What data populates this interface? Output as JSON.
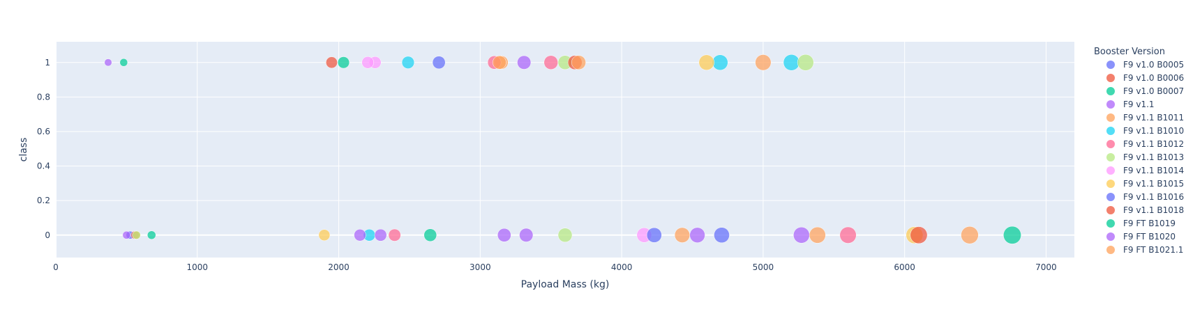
{
  "chart_data": {
    "type": "scatter",
    "title": "",
    "xlabel": "Payload Mass (kg)",
    "ylabel": "class",
    "xlim": [
      0,
      7200
    ],
    "ylim": [
      -0.13,
      1.12
    ],
    "x_ticks": [
      0,
      1000,
      2000,
      3000,
      4000,
      5000,
      6000,
      7000
    ],
    "x_tick_labels": [
      "0",
      "1000",
      "2000",
      "3000",
      "4000",
      "5000",
      "6000",
      "7000"
    ],
    "y_ticks": [
      0,
      0.2,
      0.4,
      0.6,
      0.8,
      1
    ],
    "y_tick_labels": [
      "0",
      "0.2",
      "0.4",
      "0.6",
      "0.8",
      "1"
    ],
    "grid": true,
    "legend_title": "Booster Version",
    "legend_position": "right",
    "marker_size_encodes": "Payload Mass (kg)",
    "series": [
      {
        "name": "F9 v1.0  B0005",
        "color": "#636efa",
        "points": [
          [
            525,
            0
          ]
        ]
      },
      {
        "name": "F9 v1.0  B0006",
        "color": "#ef553b",
        "points": [
          [
            1950,
            1
          ],
          [
            560,
            0
          ]
        ]
      },
      {
        "name": "F9 v1.0  B0007",
        "color": "#00cc96",
        "points": [
          [
            480,
            1
          ],
          [
            677,
            0
          ]
        ]
      },
      {
        "name": "F9 v1.1",
        "color": "#ab63fa",
        "points": [
          [
            370,
            1
          ],
          [
            500,
            0
          ],
          [
            3325,
            0
          ]
        ]
      },
      {
        "name": "F9 v1.1 B1011",
        "color": "#ffa15a",
        "points": [
          [
            3150,
            1
          ],
          [
            570,
            0
          ]
        ]
      },
      {
        "name": "F9 v1.1 B1010",
        "color": "#19d3f3",
        "points": [
          [
            2490,
            1
          ],
          [
            2216,
            0
          ]
        ]
      },
      {
        "name": "F9 v1.1 B1012",
        "color": "#ff6692",
        "points": [
          [
            3100,
            1
          ],
          [
            2395,
            0
          ]
        ]
      },
      {
        "name": "F9 v1.1 B1013",
        "color": "#b6e880",
        "points": [
          [
            3600,
            1
          ],
          [
            570,
            0
          ]
        ]
      },
      {
        "name": "F9 v1.1 B1014",
        "color": "#ff97ff",
        "points": [
          [
            2257,
            1
          ]
        ]
      },
      {
        "name": "F9 v1.1 B1015",
        "color": "#fecb52",
        "points": [
          [
            1898,
            0
          ]
        ]
      },
      {
        "name": "F9 v1.1 B1016",
        "color": "#636efa",
        "points": [
          [
            4707,
            0
          ]
        ]
      },
      {
        "name": "F9 v1.1 B1018",
        "color": "#ef553b",
        "points": [
          [
            3670,
            1
          ]
        ]
      },
      {
        "name": "F9 FT B1019",
        "color": "#00cc96",
        "points": [
          [
            2034,
            1
          ]
        ]
      },
      {
        "name": "F9 FT B1020",
        "color": "#ab63fa",
        "points": [
          [
            5271,
            0
          ]
        ]
      },
      {
        "name": "F9 FT B1021.1",
        "color": "#ffa15a",
        "points": [
          [
            3136,
            1
          ]
        ]
      },
      {
        "name": "",
        "color": "#19d3f3",
        "points": [
          [
            4696,
            1
          ],
          [
            5200,
            1
          ]
        ]
      },
      {
        "name": "",
        "color": "#ff6692",
        "points": [
          [
            3500,
            1
          ],
          [
            5600,
            0
          ]
        ]
      },
      {
        "name": "",
        "color": "#b6e880",
        "points": [
          [
            5300,
            1
          ],
          [
            3600,
            0
          ]
        ]
      },
      {
        "name": "",
        "color": "#ff97ff",
        "points": [
          [
            2205,
            1
          ],
          [
            4159,
            0
          ]
        ]
      },
      {
        "name": "",
        "color": "#fecb52",
        "points": [
          [
            4600,
            1
          ],
          [
            6070,
            0
          ]
        ]
      },
      {
        "name": "",
        "color": "#636efa",
        "points": [
          [
            2708,
            1
          ],
          [
            4230,
            0
          ]
        ]
      },
      {
        "name": "",
        "color": "#ef553b",
        "points": [
          [
            6100,
            0
          ]
        ]
      },
      {
        "name": "",
        "color": "#00cc96",
        "points": [
          [
            2647,
            0
          ],
          [
            6761,
            0
          ]
        ]
      },
      {
        "name": "",
        "color": "#ab63fa",
        "points": [
          [
            3310,
            1
          ],
          [
            2150,
            0
          ],
          [
            2296,
            0
          ],
          [
            3170,
            0
          ],
          [
            4535,
            0
          ]
        ]
      },
      {
        "name": "",
        "color": "#ffa15a",
        "points": [
          [
            3696,
            1
          ],
          [
            5000,
            1
          ],
          [
            4428,
            0
          ],
          [
            5384,
            0
          ],
          [
            6460,
            0
          ]
        ]
      }
    ]
  }
}
